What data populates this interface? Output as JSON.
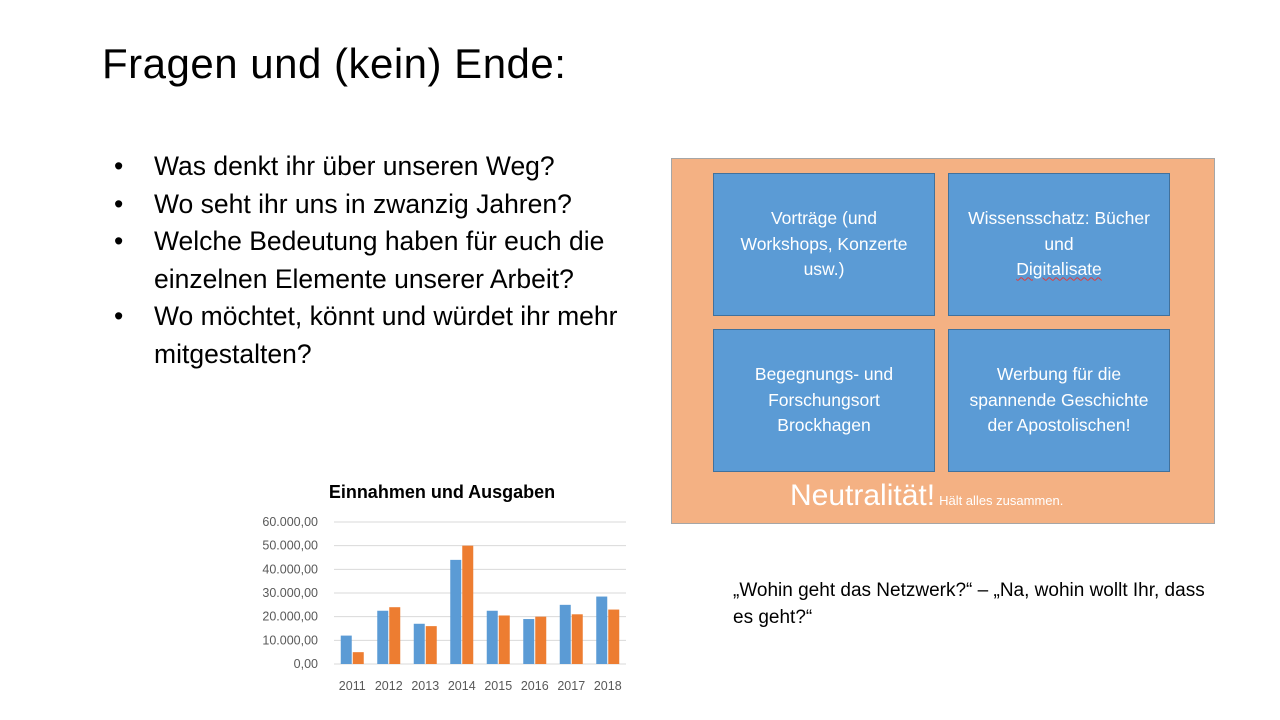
{
  "slide": {
    "title": "Fragen und (kein) Ende:",
    "bullets": [
      {
        "text": "Was denkt ihr über unseren Weg?"
      },
      {
        "text": "Wo seht ihr uns in zwanzig Jahren?"
      },
      {
        "text": "Welche Bedeutung haben für euch die einzelnen Elemente unserer Arbeit?"
      },
      {
        "text": "Wo möchtet, könnt und würdet ihr mehr mitgestalten?"
      }
    ],
    "bullet_char": "•",
    "diagram": {
      "tiles": [
        {
          "text": "Vorträge (und Workshops, Konzerte usw.)"
        },
        {
          "text_a": "Wissensschatz: Bücher und ",
          "text_b": "Digitalisate"
        },
        {
          "text": "Begegnungs- und Forschungsort Brockhagen"
        },
        {
          "text": "Werbung für die spannende Geschichte der Apostolischen!"
        }
      ],
      "footer_big": "Neutralität!",
      "footer_small": "Hält alles zusammen.",
      "colors": {
        "panel": "#f4b183",
        "tile": "#5b9bd5"
      }
    },
    "quote": "„Wohin geht das Netzwerk?“ – „Na, wohin wollt Ihr, dass es geht?“"
  },
  "chart_data": {
    "type": "bar",
    "title": "Einnahmen und Ausgaben",
    "categories": [
      "2011",
      "2012",
      "2013",
      "2014",
      "2015",
      "2016",
      "2017",
      "2018"
    ],
    "series": [
      {
        "values": [
          12000,
          22500,
          17000,
          44000,
          22500,
          19000,
          25000,
          28500
        ],
        "color": "#5b9bd5"
      },
      {
        "values": [
          5000,
          24000,
          16000,
          50000,
          20500,
          20000,
          21000,
          23000
        ],
        "color": "#ed7d31"
      }
    ],
    "yticks": [
      "0,00",
      "10.000,00",
      "20.000,00",
      "30.000,00",
      "40.000,00",
      "50.000,00",
      "60.000,00"
    ],
    "ylim": [
      0,
      60000
    ],
    "grid": true
  }
}
